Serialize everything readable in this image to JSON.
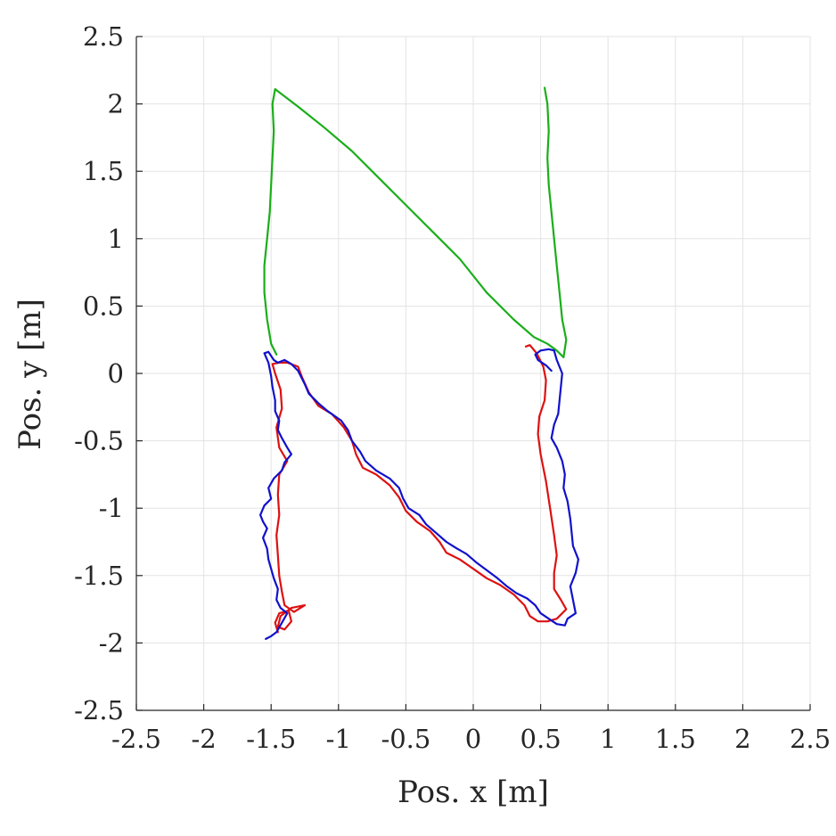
{
  "chart_data": {
    "type": "line",
    "title": "",
    "xlabel": "Pos. x [m]",
    "ylabel": "Pos. y [m]",
    "xlim": [
      -2.5,
      2.5
    ],
    "ylim": [
      -2.5,
      2.5
    ],
    "grid": true,
    "x_ticks": [
      -2.5,
      -2,
      -1.5,
      -1,
      -0.5,
      0,
      0.5,
      1,
      1.5,
      2,
      2.5
    ],
    "y_ticks": [
      -2.5,
      -2,
      -1.5,
      -1,
      -0.5,
      0,
      0.5,
      1,
      1.5,
      2,
      2.5
    ],
    "x_tick_labels": [
      "-2.5",
      "-2",
      "-1.5",
      "-1",
      "-0.5",
      "0",
      "0.5",
      "1",
      "1.5",
      "2",
      "2.5"
    ],
    "y_tick_labels": [
      "-2.5",
      "-2",
      "-1.5",
      "-1",
      "-0.5",
      "0",
      "0.5",
      "1",
      "1.5",
      "2",
      "2.5"
    ],
    "series": [
      {
        "color": "#1aae1a",
        "points": [
          [
            0.53,
            2.12
          ],
          [
            0.55,
            2.0
          ],
          [
            0.56,
            1.8
          ],
          [
            0.55,
            1.6
          ],
          [
            0.56,
            1.4
          ],
          [
            0.58,
            1.2
          ],
          [
            0.6,
            1.0
          ],
          [
            0.62,
            0.8
          ],
          [
            0.64,
            0.6
          ],
          [
            0.66,
            0.4
          ],
          [
            0.69,
            0.25
          ],
          [
            0.67,
            0.12
          ],
          [
            0.62,
            0.17
          ],
          [
            0.55,
            0.22
          ],
          [
            0.45,
            0.27
          ],
          [
            0.3,
            0.4
          ],
          [
            0.1,
            0.6
          ],
          [
            -0.1,
            0.85
          ],
          [
            -0.3,
            1.05
          ],
          [
            -0.5,
            1.25
          ],
          [
            -0.7,
            1.45
          ],
          [
            -0.9,
            1.65
          ],
          [
            -1.1,
            1.82
          ],
          [
            -1.3,
            1.98
          ],
          [
            -1.47,
            2.11
          ],
          [
            -1.49,
            2.0
          ],
          [
            -1.48,
            1.8
          ],
          [
            -1.49,
            1.6
          ],
          [
            -1.5,
            1.4
          ],
          [
            -1.51,
            1.2
          ],
          [
            -1.53,
            1.0
          ],
          [
            -1.55,
            0.8
          ],
          [
            -1.55,
            0.6
          ],
          [
            -1.53,
            0.4
          ],
          [
            -1.5,
            0.22
          ],
          [
            -1.46,
            0.14
          ]
        ]
      },
      {
        "color": "#dd1111",
        "points": [
          [
            0.39,
            0.2
          ],
          [
            0.42,
            0.21
          ],
          [
            0.47,
            0.15
          ],
          [
            0.52,
            0.05
          ],
          [
            0.54,
            -0.05
          ],
          [
            0.53,
            -0.2
          ],
          [
            0.49,
            -0.32
          ],
          [
            0.48,
            -0.45
          ],
          [
            0.5,
            -0.6
          ],
          [
            0.54,
            -0.8
          ],
          [
            0.57,
            -1.0
          ],
          [
            0.6,
            -1.2
          ],
          [
            0.62,
            -1.35
          ],
          [
            0.6,
            -1.48
          ],
          [
            0.6,
            -1.6
          ],
          [
            0.65,
            -1.68
          ],
          [
            0.69,
            -1.75
          ],
          [
            0.62,
            -1.82
          ],
          [
            0.55,
            -1.84
          ],
          [
            0.48,
            -1.84
          ],
          [
            0.42,
            -1.8
          ],
          [
            0.38,
            -1.72
          ],
          [
            0.3,
            -1.64
          ],
          [
            0.2,
            -1.57
          ],
          [
            0.1,
            -1.52
          ],
          [
            0.0,
            -1.45
          ],
          [
            -0.1,
            -1.38
          ],
          [
            -0.2,
            -1.33
          ],
          [
            -0.25,
            -1.25
          ],
          [
            -0.32,
            -1.17
          ],
          [
            -0.42,
            -1.1
          ],
          [
            -0.5,
            -1.02
          ],
          [
            -0.55,
            -0.92
          ],
          [
            -0.62,
            -0.83
          ],
          [
            -0.72,
            -0.75
          ],
          [
            -0.82,
            -0.7
          ],
          [
            -0.87,
            -0.6
          ],
          [
            -0.9,
            -0.5
          ],
          [
            -0.96,
            -0.4
          ],
          [
            -1.05,
            -0.3
          ],
          [
            -1.15,
            -0.24
          ],
          [
            -1.22,
            -0.14
          ],
          [
            -1.27,
            -0.03
          ],
          [
            -1.3,
            0.05
          ],
          [
            -1.38,
            0.08
          ],
          [
            -1.44,
            0.08
          ],
          [
            -1.49,
            0.07
          ],
          [
            -1.47,
            0.0
          ],
          [
            -1.43,
            -0.12
          ],
          [
            -1.42,
            -0.26
          ],
          [
            -1.46,
            -0.4
          ],
          [
            -1.44,
            -0.55
          ],
          [
            -1.38,
            -0.65
          ],
          [
            -1.44,
            -0.75
          ],
          [
            -1.45,
            -0.9
          ],
          [
            -1.44,
            -1.05
          ],
          [
            -1.46,
            -1.2
          ],
          [
            -1.45,
            -1.35
          ],
          [
            -1.44,
            -1.5
          ],
          [
            -1.42,
            -1.62
          ],
          [
            -1.4,
            -1.72
          ],
          [
            -1.33,
            -1.77
          ],
          [
            -1.25,
            -1.72
          ],
          [
            -1.35,
            -1.74
          ],
          [
            -1.43,
            -1.8
          ],
          [
            -1.45,
            -1.88
          ],
          [
            -1.4,
            -1.9
          ],
          [
            -1.35,
            -1.84
          ],
          [
            -1.37,
            -1.76
          ],
          [
            -1.44,
            -1.78
          ],
          [
            -1.47,
            -1.85
          ],
          [
            -1.45,
            -1.92
          ]
        ]
      },
      {
        "color": "#1111cc",
        "points": [
          [
            -1.54,
            -1.97
          ],
          [
            -1.5,
            -1.95
          ],
          [
            -1.46,
            -1.92
          ],
          [
            -1.42,
            -1.85
          ],
          [
            -1.38,
            -1.78
          ],
          [
            -1.43,
            -1.74
          ],
          [
            -1.46,
            -1.68
          ],
          [
            -1.45,
            -1.6
          ],
          [
            -1.48,
            -1.52
          ],
          [
            -1.5,
            -1.45
          ],
          [
            -1.52,
            -1.38
          ],
          [
            -1.53,
            -1.3
          ],
          [
            -1.56,
            -1.22
          ],
          [
            -1.53,
            -1.15
          ],
          [
            -1.56,
            -1.1
          ],
          [
            -1.58,
            -1.05
          ],
          [
            -1.55,
            -0.98
          ],
          [
            -1.5,
            -0.93
          ],
          [
            -1.52,
            -0.85
          ],
          [
            -1.48,
            -0.78
          ],
          [
            -1.42,
            -0.72
          ],
          [
            -1.4,
            -0.66
          ],
          [
            -1.35,
            -0.6
          ],
          [
            -1.38,
            -0.55
          ],
          [
            -1.42,
            -0.48
          ],
          [
            -1.45,
            -0.42
          ],
          [
            -1.44,
            -0.35
          ],
          [
            -1.47,
            -0.28
          ],
          [
            -1.47,
            -0.2
          ],
          [
            -1.49,
            -0.1
          ],
          [
            -1.5,
            -0.02
          ],
          [
            -1.52,
            0.08
          ],
          [
            -1.55,
            0.15
          ],
          [
            -1.52,
            0.16
          ],
          [
            -1.48,
            0.1
          ],
          [
            -1.45,
            0.08
          ],
          [
            -1.4,
            0.1
          ],
          [
            -1.35,
            0.07
          ],
          [
            -1.3,
            0.02
          ],
          [
            -1.25,
            -0.08
          ],
          [
            -1.22,
            -0.15
          ],
          [
            -1.15,
            -0.22
          ],
          [
            -1.08,
            -0.28
          ],
          [
            -0.98,
            -0.35
          ],
          [
            -0.93,
            -0.42
          ],
          [
            -0.9,
            -0.5
          ],
          [
            -0.84,
            -0.58
          ],
          [
            -0.8,
            -0.65
          ],
          [
            -0.72,
            -0.72
          ],
          [
            -0.62,
            -0.78
          ],
          [
            -0.55,
            -0.85
          ],
          [
            -0.52,
            -0.93
          ],
          [
            -0.48,
            -1.0
          ],
          [
            -0.4,
            -1.05
          ],
          [
            -0.35,
            -1.12
          ],
          [
            -0.28,
            -1.18
          ],
          [
            -0.2,
            -1.25
          ],
          [
            -0.12,
            -1.3
          ],
          [
            -0.05,
            -1.34
          ],
          [
            0.02,
            -1.4
          ],
          [
            0.1,
            -1.46
          ],
          [
            0.18,
            -1.52
          ],
          [
            0.25,
            -1.58
          ],
          [
            0.32,
            -1.63
          ],
          [
            0.4,
            -1.67
          ],
          [
            0.46,
            -1.72
          ],
          [
            0.5,
            -1.78
          ],
          [
            0.56,
            -1.82
          ],
          [
            0.62,
            -1.86
          ],
          [
            0.68,
            -1.87
          ],
          [
            0.7,
            -1.82
          ],
          [
            0.76,
            -1.78
          ],
          [
            0.74,
            -1.68
          ],
          [
            0.72,
            -1.58
          ],
          [
            0.76,
            -1.48
          ],
          [
            0.78,
            -1.38
          ],
          [
            0.74,
            -1.28
          ],
          [
            0.73,
            -1.18
          ],
          [
            0.72,
            -1.08
          ],
          [
            0.7,
            -0.95
          ],
          [
            0.67,
            -0.85
          ],
          [
            0.68,
            -0.75
          ],
          [
            0.66,
            -0.65
          ],
          [
            0.62,
            -0.55
          ],
          [
            0.58,
            -0.48
          ],
          [
            0.6,
            -0.38
          ],
          [
            0.63,
            -0.3
          ],
          [
            0.64,
            -0.2
          ],
          [
            0.65,
            -0.1
          ],
          [
            0.66,
            0.0
          ],
          [
            0.62,
            0.1
          ],
          [
            0.6,
            0.17
          ],
          [
            0.56,
            0.18
          ],
          [
            0.5,
            0.17
          ],
          [
            0.46,
            0.14
          ],
          [
            0.48,
            0.1
          ],
          [
            0.54,
            0.06
          ],
          [
            0.58,
            0.02
          ]
        ]
      }
    ]
  }
}
